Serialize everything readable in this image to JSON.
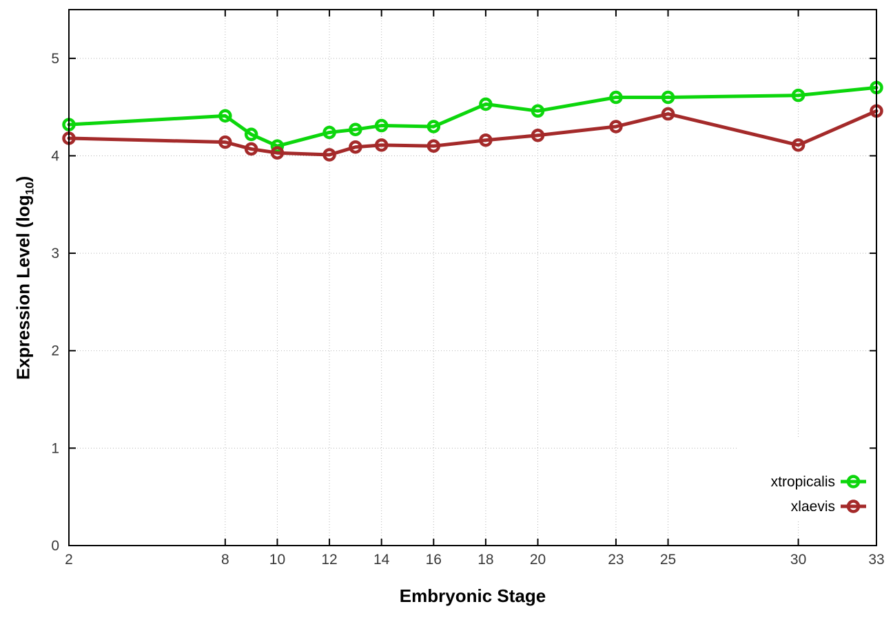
{
  "window": {
    "background_color": "#ffffff"
  },
  "chart_data": {
    "type": "line",
    "title": "",
    "xlabel": "Embryonic Stage",
    "ylabel": "Expression Level (log10)",
    "ylabel_parts": {
      "prefix": "Expression Level (log",
      "sub": "10",
      "suffix": ")"
    },
    "x_ticks": [
      2,
      8,
      10,
      12,
      14,
      16,
      18,
      20,
      23,
      25,
      30,
      33
    ],
    "y_ticks": [
      0,
      1,
      2,
      3,
      4,
      5
    ],
    "xlim": [
      2,
      33
    ],
    "ylim": [
      0,
      5.5
    ],
    "grid": true,
    "legend_position": "inside-bottom-right",
    "marker": "open-circle",
    "x": [
      2,
      8,
      9,
      10,
      12,
      13,
      14,
      16,
      18,
      20,
      23,
      25,
      30,
      33
    ],
    "series": [
      {
        "name": "xtropicalis",
        "color": "#0cd60c",
        "values": [
          4.32,
          4.41,
          4.22,
          4.1,
          4.24,
          4.27,
          4.31,
          4.3,
          4.53,
          4.46,
          4.6,
          4.6,
          4.62,
          4.7
        ]
      },
      {
        "name": "xlaevis",
        "color": "#a42a2a",
        "values": [
          4.18,
          4.14,
          4.07,
          4.03,
          4.01,
          4.09,
          4.11,
          4.1,
          4.16,
          4.21,
          4.3,
          4.43,
          4.11,
          4.46
        ]
      }
    ],
    "axis_color": "#000000",
    "grid_color": "#b3b3b3",
    "tick_label_color": "#383838",
    "legend_box_color": "#ffffff"
  }
}
